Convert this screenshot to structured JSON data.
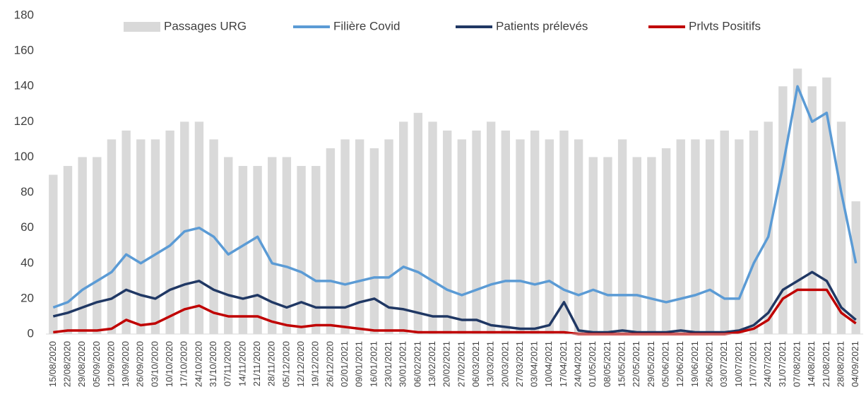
{
  "chart_data": {
    "type": "combo",
    "categories": [
      "15/08/2020",
      "22/08/2020",
      "29/08/2020",
      "05/09/2020",
      "12/09/2020",
      "19/09/2020",
      "26/09/2020",
      "03/10/2020",
      "10/10/2020",
      "17/10/2020",
      "24/10/2020",
      "31/10/2020",
      "07/11/2020",
      "14/11/2020",
      "21/11/2020",
      "28/11/2020",
      "05/12/2020",
      "12/12/2020",
      "19/12/2020",
      "26/12/2020",
      "02/01/2021",
      "09/01/2021",
      "16/01/2021",
      "23/01/2021",
      "30/01/2021",
      "06/02/2021",
      "13/02/2021",
      "20/02/2021",
      "27/02/2021",
      "06/03/2021",
      "13/03/2021",
      "20/03/2021",
      "27/03/2021",
      "03/04/2021",
      "10/04/2021",
      "17/04/2021",
      "24/04/2021",
      "01/05/2021",
      "08/05/2021",
      "15/05/2021",
      "22/05/2021",
      "29/05/2021",
      "05/06/2021",
      "12/06/2021",
      "19/06/2021",
      "26/06/2021",
      "03/07/2021",
      "10/07/2021",
      "17/07/2021",
      "24/07/2021",
      "31/07/2021",
      "07/08/2021",
      "14/08/2021",
      "21/08/2021",
      "28/08/2021",
      "04/09/2021"
    ],
    "series": [
      {
        "name": "Passages URG",
        "type": "bar",
        "color": "#d9d9d9",
        "values": [
          90,
          95,
          100,
          100,
          110,
          115,
          110,
          110,
          115,
          120,
          120,
          110,
          100,
          95,
          95,
          100,
          100,
          95,
          95,
          105,
          110,
          110,
          105,
          110,
          120,
          125,
          120,
          115,
          110,
          115,
          120,
          115,
          110,
          115,
          110,
          115,
          110,
          100,
          100,
          110,
          100,
          100,
          105,
          110,
          110,
          110,
          115,
          110,
          115,
          120,
          140,
          150,
          140,
          145,
          120,
          75
        ]
      },
      {
        "name": "Filière Covid",
        "type": "line",
        "color": "#5b9bd5",
        "values": [
          15,
          18,
          25,
          30,
          35,
          45,
          40,
          45,
          50,
          58,
          60,
          55,
          45,
          50,
          55,
          40,
          38,
          35,
          30,
          30,
          28,
          30,
          32,
          32,
          38,
          35,
          30,
          25,
          22,
          25,
          28,
          30,
          30,
          28,
          30,
          25,
          22,
          25,
          22,
          22,
          22,
          20,
          18,
          20,
          22,
          25,
          20,
          20,
          40,
          55,
          95,
          140,
          120,
          125,
          80,
          40
        ]
      },
      {
        "name": "Patients prélevés",
        "type": "line",
        "color": "#203864",
        "values": [
          10,
          12,
          15,
          18,
          20,
          25,
          22,
          20,
          25,
          28,
          30,
          25,
          22,
          20,
          22,
          18,
          15,
          18,
          15,
          15,
          15,
          18,
          20,
          15,
          14,
          12,
          10,
          10,
          8,
          8,
          5,
          4,
          3,
          3,
          5,
          18,
          2,
          1,
          1,
          2,
          1,
          1,
          1,
          2,
          1,
          1,
          1,
          2,
          5,
          12,
          25,
          30,
          35,
          30,
          15,
          8
        ]
      },
      {
        "name": "Prlvts Positifs",
        "type": "line",
        "color": "#c00000",
        "values": [
          1,
          2,
          2,
          2,
          3,
          8,
          5,
          6,
          10,
          14,
          16,
          12,
          10,
          10,
          10,
          7,
          5,
          4,
          5,
          5,
          4,
          3,
          2,
          2,
          2,
          1,
          1,
          1,
          1,
          1,
          1,
          1,
          1,
          1,
          1,
          1,
          0,
          0,
          0,
          0,
          0,
          0,
          0,
          0,
          0,
          0,
          0,
          1,
          3,
          8,
          20,
          25,
          25,
          25,
          12,
          6
        ]
      }
    ],
    "ylim": [
      0,
      180
    ],
    "yticks": [
      0,
      20,
      40,
      60,
      80,
      100,
      120,
      140,
      160,
      180
    ],
    "grid": false,
    "legend": "top"
  }
}
